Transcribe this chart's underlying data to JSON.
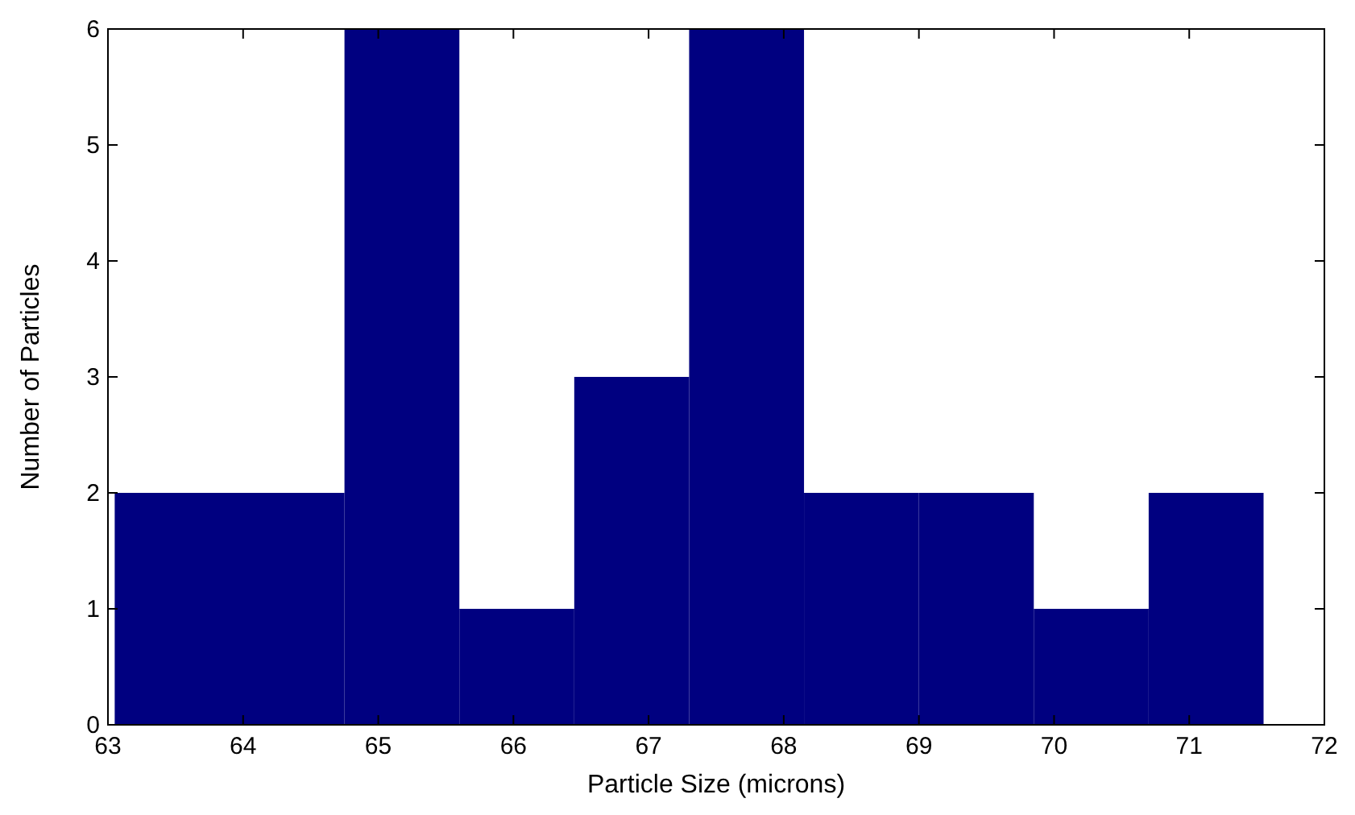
{
  "chart_data": {
    "type": "histogram",
    "xlabel": "Particle Size (microns)",
    "ylabel": "Number of Particles",
    "bins": [
      63.05,
      63.9,
      64.75,
      65.6,
      66.45,
      67.3,
      68.15,
      69.0,
      69.85,
      70.7,
      71.55
    ],
    "values": [
      2,
      2,
      6,
      1,
      3,
      6,
      2,
      2,
      1,
      2
    ],
    "color": "#000080",
    "xlim": [
      63,
      72
    ],
    "xticks": [
      63,
      64,
      65,
      66,
      67,
      68,
      69,
      70,
      71,
      72
    ],
    "ylim": [
      0,
      6
    ],
    "yticks": [
      0,
      1,
      2,
      3,
      4,
      5,
      6
    ]
  }
}
